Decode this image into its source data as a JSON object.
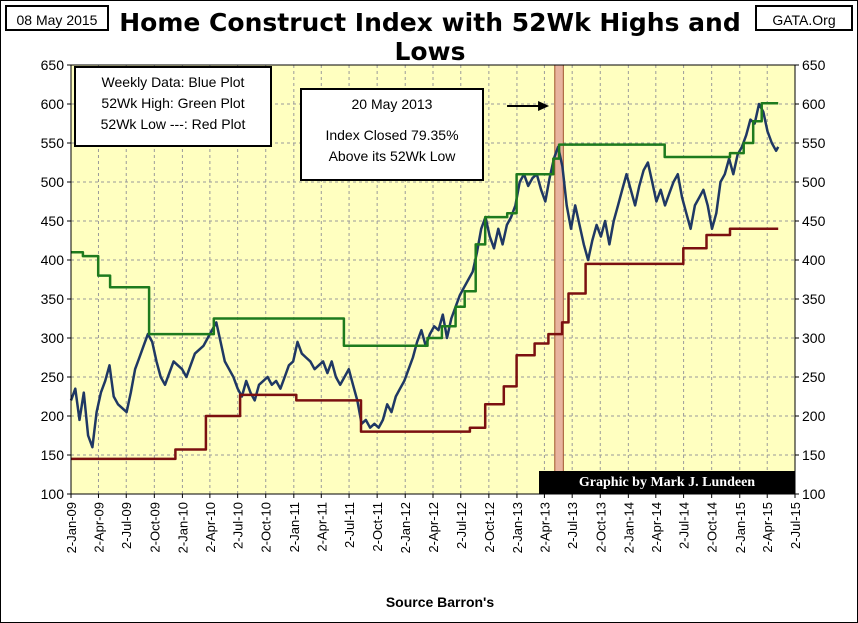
{
  "date_label": "08 May 2015",
  "site_label": "GATA.Org",
  "source_label": "Source Barron's",
  "credit_label": "Graphic by Mark J. Lundeen",
  "legend": {
    "line1": "Weekly Data: Blue Plot",
    "line2": "52Wk High: Green Plot",
    "line3": "52Wk Low ---: Red Plot"
  },
  "note": {
    "line1": "20 May 2013",
    "line2": "Index Closed  79.35%",
    "line3": "Above its 52Wk Low"
  },
  "colors": {
    "plot_bg": "#ffffc0",
    "weekly": "#1f3864",
    "high": "#1e7b1e",
    "low": "#7b1010",
    "highlight": "#e8b4a0"
  },
  "chart_data": {
    "type": "line",
    "title": "Home Construct Index with 52Wk Highs and Lows",
    "xlabel": "Source Barron's",
    "ylim": [
      100,
      650
    ],
    "yticks": [
      100,
      150,
      200,
      250,
      300,
      350,
      400,
      450,
      500,
      550,
      600,
      650
    ],
    "x_range": [
      "2009-01-02",
      "2015-07-02"
    ],
    "x_tick_labels": [
      "2-Jan-09",
      "2-Apr-09",
      "2-Jul-09",
      "2-Oct-09",
      "2-Jan-10",
      "2-Apr-10",
      "2-Jul-10",
      "2-Oct-10",
      "2-Jan-11",
      "2-Apr-11",
      "2-Jul-11",
      "2-Oct-11",
      "2-Jan-12",
      "2-Apr-12",
      "2-Jul-12",
      "2-Oct-12",
      "2-Jan-13",
      "2-Apr-13",
      "2-Jul-13",
      "2-Oct-13",
      "2-Jan-14",
      "2-Apr-14",
      "2-Jul-14",
      "2-Oct-14",
      "2-Jan-15",
      "2-Apr-15",
      "2-Jul-15"
    ],
    "x_tick_dates": [
      "2009-01-02",
      "2009-04-02",
      "2009-07-02",
      "2009-10-02",
      "2010-01-02",
      "2010-04-02",
      "2010-07-02",
      "2010-10-02",
      "2011-01-02",
      "2011-04-02",
      "2011-07-02",
      "2011-10-02",
      "2012-01-02",
      "2012-04-02",
      "2012-07-02",
      "2012-10-02",
      "2013-01-02",
      "2013-04-02",
      "2013-07-02",
      "2013-10-02",
      "2014-01-02",
      "2014-04-02",
      "2014-07-02",
      "2014-10-02",
      "2015-01-02",
      "2015-04-02",
      "2015-07-02"
    ],
    "highlight_range": [
      "2013-05-06",
      "2013-06-03"
    ],
    "annotation_date": "2013-05-20",
    "grid": true,
    "legend_placement": "top-left",
    "series": [
      {
        "key": "weekly",
        "points": [
          [
            "2009-01-02",
            220
          ],
          [
            "2009-01-16",
            235
          ],
          [
            "2009-01-30",
            195
          ],
          [
            "2009-02-13",
            230
          ],
          [
            "2009-02-27",
            175
          ],
          [
            "2009-03-13",
            160
          ],
          [
            "2009-03-27",
            205
          ],
          [
            "2009-04-10",
            230
          ],
          [
            "2009-04-24",
            245
          ],
          [
            "2009-05-08",
            265
          ],
          [
            "2009-05-22",
            225
          ],
          [
            "2009-06-05",
            215
          ],
          [
            "2009-06-19",
            210
          ],
          [
            "2009-07-03",
            205
          ],
          [
            "2009-07-17",
            230
          ],
          [
            "2009-07-31",
            260
          ],
          [
            "2009-08-14",
            275
          ],
          [
            "2009-08-28",
            290
          ],
          [
            "2009-09-11",
            305
          ],
          [
            "2009-09-25",
            295
          ],
          [
            "2009-10-09",
            270
          ],
          [
            "2009-10-23",
            250
          ],
          [
            "2009-11-06",
            240
          ],
          [
            "2009-11-20",
            255
          ],
          [
            "2009-12-04",
            270
          ],
          [
            "2009-12-18",
            265
          ],
          [
            "2010-01-01",
            260
          ],
          [
            "2010-01-15",
            250
          ],
          [
            "2010-01-29",
            265
          ],
          [
            "2010-02-12",
            280
          ],
          [
            "2010-02-26",
            285
          ],
          [
            "2010-03-12",
            290
          ],
          [
            "2010-03-26",
            300
          ],
          [
            "2010-04-09",
            310
          ],
          [
            "2010-04-23",
            320
          ],
          [
            "2010-05-07",
            295
          ],
          [
            "2010-05-21",
            270
          ],
          [
            "2010-06-04",
            260
          ],
          [
            "2010-06-18",
            250
          ],
          [
            "2010-07-02",
            235
          ],
          [
            "2010-07-16",
            225
          ],
          [
            "2010-07-30",
            245
          ],
          [
            "2010-08-13",
            230
          ],
          [
            "2010-08-27",
            220
          ],
          [
            "2010-09-10",
            240
          ],
          [
            "2010-09-24",
            245
          ],
          [
            "2010-10-08",
            250
          ],
          [
            "2010-10-22",
            240
          ],
          [
            "2010-11-05",
            245
          ],
          [
            "2010-11-19",
            235
          ],
          [
            "2010-12-03",
            250
          ],
          [
            "2010-12-17",
            265
          ],
          [
            "2010-12-31",
            270
          ],
          [
            "2011-01-14",
            295
          ],
          [
            "2011-01-28",
            280
          ],
          [
            "2011-02-11",
            275
          ],
          [
            "2011-02-25",
            270
          ],
          [
            "2011-03-11",
            260
          ],
          [
            "2011-03-25",
            265
          ],
          [
            "2011-04-08",
            270
          ],
          [
            "2011-04-22",
            255
          ],
          [
            "2011-05-06",
            270
          ],
          [
            "2011-05-20",
            250
          ],
          [
            "2011-06-03",
            240
          ],
          [
            "2011-06-17",
            250
          ],
          [
            "2011-07-01",
            260
          ],
          [
            "2011-07-15",
            240
          ],
          [
            "2011-07-29",
            220
          ],
          [
            "2011-08-12",
            190
          ],
          [
            "2011-08-26",
            195
          ],
          [
            "2011-09-09",
            185
          ],
          [
            "2011-09-23",
            190
          ],
          [
            "2011-10-07",
            185
          ],
          [
            "2011-10-21",
            195
          ],
          [
            "2011-11-04",
            215
          ],
          [
            "2011-11-18",
            205
          ],
          [
            "2011-12-02",
            225
          ],
          [
            "2011-12-16",
            235
          ],
          [
            "2011-12-30",
            245
          ],
          [
            "2012-01-13",
            260
          ],
          [
            "2012-01-27",
            275
          ],
          [
            "2012-02-10",
            295
          ],
          [
            "2012-02-24",
            310
          ],
          [
            "2012-03-09",
            290
          ],
          [
            "2012-03-23",
            305
          ],
          [
            "2012-04-06",
            315
          ],
          [
            "2012-04-20",
            310
          ],
          [
            "2012-05-04",
            330
          ],
          [
            "2012-05-18",
            300
          ],
          [
            "2012-06-01",
            325
          ],
          [
            "2012-06-15",
            340
          ],
          [
            "2012-06-29",
            355
          ],
          [
            "2012-07-13",
            365
          ],
          [
            "2012-07-27",
            375
          ],
          [
            "2012-08-10",
            385
          ],
          [
            "2012-08-24",
            410
          ],
          [
            "2012-09-07",
            440
          ],
          [
            "2012-09-21",
            455
          ],
          [
            "2012-10-05",
            430
          ],
          [
            "2012-10-19",
            415
          ],
          [
            "2012-11-02",
            440
          ],
          [
            "2012-11-16",
            420
          ],
          [
            "2012-11-30",
            445
          ],
          [
            "2012-12-14",
            455
          ],
          [
            "2012-12-28",
            470
          ],
          [
            "2013-01-11",
            500
          ],
          [
            "2013-01-25",
            510
          ],
          [
            "2013-02-08",
            495
          ],
          [
            "2013-02-22",
            505
          ],
          [
            "2013-03-08",
            510
          ],
          [
            "2013-03-22",
            490
          ],
          [
            "2013-04-05",
            475
          ],
          [
            "2013-04-19",
            505
          ],
          [
            "2013-05-03",
            530
          ],
          [
            "2013-05-17",
            545
          ],
          [
            "2013-05-31",
            520
          ],
          [
            "2013-06-14",
            470
          ],
          [
            "2013-06-28",
            440
          ],
          [
            "2013-07-12",
            470
          ],
          [
            "2013-07-26",
            445
          ],
          [
            "2013-08-09",
            420
          ],
          [
            "2013-08-23",
            400
          ],
          [
            "2013-09-06",
            425
          ],
          [
            "2013-09-20",
            445
          ],
          [
            "2013-10-04",
            430
          ],
          [
            "2013-10-18",
            450
          ],
          [
            "2013-11-01",
            420
          ],
          [
            "2013-11-15",
            450
          ],
          [
            "2013-11-29",
            470
          ],
          [
            "2013-12-13",
            490
          ],
          [
            "2013-12-27",
            510
          ],
          [
            "2014-01-10",
            490
          ],
          [
            "2014-01-24",
            470
          ],
          [
            "2014-02-07",
            495
          ],
          [
            "2014-02-21",
            515
          ],
          [
            "2014-03-07",
            525
          ],
          [
            "2014-03-21",
            500
          ],
          [
            "2014-04-04",
            475
          ],
          [
            "2014-04-18",
            490
          ],
          [
            "2014-05-02",
            470
          ],
          [
            "2014-05-16",
            485
          ],
          [
            "2014-05-30",
            500
          ],
          [
            "2014-06-13",
            510
          ],
          [
            "2014-06-27",
            480
          ],
          [
            "2014-07-11",
            460
          ],
          [
            "2014-07-25",
            440
          ],
          [
            "2014-08-08",
            470
          ],
          [
            "2014-08-22",
            480
          ],
          [
            "2014-09-05",
            490
          ],
          [
            "2014-09-19",
            470
          ],
          [
            "2014-10-03",
            440
          ],
          [
            "2014-10-17",
            460
          ],
          [
            "2014-10-31",
            500
          ],
          [
            "2014-11-14",
            510
          ],
          [
            "2014-11-28",
            530
          ],
          [
            "2014-12-12",
            510
          ],
          [
            "2014-12-26",
            535
          ],
          [
            "2015-01-09",
            545
          ],
          [
            "2015-01-23",
            560
          ],
          [
            "2015-02-06",
            580
          ],
          [
            "2015-02-20",
            575
          ],
          [
            "2015-03-06",
            600
          ],
          [
            "2015-03-20",
            590
          ],
          [
            "2015-04-03",
            565
          ],
          [
            "2015-04-17",
            550
          ],
          [
            "2015-05-01",
            540
          ],
          [
            "2015-05-08",
            545
          ]
        ]
      },
      {
        "key": "high",
        "points": [
          [
            "2009-01-02",
            410
          ],
          [
            "2009-02-10",
            410
          ],
          [
            "2009-02-10",
            405
          ],
          [
            "2009-04-01",
            405
          ],
          [
            "2009-04-01",
            380
          ],
          [
            "2009-05-10",
            380
          ],
          [
            "2009-05-10",
            365
          ],
          [
            "2009-09-15",
            365
          ],
          [
            "2009-09-15",
            305
          ],
          [
            "2010-04-15",
            305
          ],
          [
            "2010-04-15",
            325
          ],
          [
            "2011-06-15",
            325
          ],
          [
            "2011-06-15",
            290
          ],
          [
            "2012-03-15",
            290
          ],
          [
            "2012-03-15",
            300
          ],
          [
            "2012-05-01",
            300
          ],
          [
            "2012-05-01",
            315
          ],
          [
            "2012-06-15",
            315
          ],
          [
            "2012-06-15",
            340
          ],
          [
            "2012-07-15",
            340
          ],
          [
            "2012-07-15",
            360
          ],
          [
            "2012-08-20",
            360
          ],
          [
            "2012-08-20",
            420
          ],
          [
            "2012-09-20",
            420
          ],
          [
            "2012-09-20",
            455
          ],
          [
            "2012-12-01",
            455
          ],
          [
            "2012-12-01",
            460
          ],
          [
            "2013-01-01",
            460
          ],
          [
            "2013-01-01",
            510
          ],
          [
            "2013-05-01",
            510
          ],
          [
            "2013-05-01",
            530
          ],
          [
            "2013-05-20",
            530
          ],
          [
            "2013-05-20",
            548
          ],
          [
            "2014-05-01",
            548
          ],
          [
            "2014-05-01",
            532
          ],
          [
            "2014-12-01",
            532
          ],
          [
            "2014-12-01",
            537
          ],
          [
            "2015-01-15",
            537
          ],
          [
            "2015-01-15",
            550
          ],
          [
            "2015-02-15",
            550
          ],
          [
            "2015-02-15",
            578
          ],
          [
            "2015-03-15",
            578
          ],
          [
            "2015-03-15",
            601
          ],
          [
            "2015-05-08",
            601
          ]
        ]
      },
      {
        "key": "low",
        "points": [
          [
            "2009-01-02",
            145
          ],
          [
            "2009-12-10",
            145
          ],
          [
            "2009-12-10",
            157
          ],
          [
            "2010-03-20",
            157
          ],
          [
            "2010-03-20",
            200
          ],
          [
            "2010-07-10",
            200
          ],
          [
            "2010-07-10",
            227
          ],
          [
            "2011-01-10",
            227
          ],
          [
            "2011-01-10",
            220
          ],
          [
            "2011-08-10",
            220
          ],
          [
            "2011-08-10",
            180
          ],
          [
            "2012-08-01",
            180
          ],
          [
            "2012-08-01",
            185
          ],
          [
            "2012-09-20",
            185
          ],
          [
            "2012-09-20",
            215
          ],
          [
            "2012-11-20",
            215
          ],
          [
            "2012-11-20",
            238
          ],
          [
            "2013-01-01",
            238
          ],
          [
            "2013-01-01",
            278
          ],
          [
            "2013-03-01",
            278
          ],
          [
            "2013-03-01",
            293
          ],
          [
            "2013-04-15",
            293
          ],
          [
            "2013-04-15",
            305
          ],
          [
            "2013-05-30",
            305
          ],
          [
            "2013-05-30",
            320
          ],
          [
            "2013-06-20",
            320
          ],
          [
            "2013-06-20",
            357
          ],
          [
            "2013-08-15",
            357
          ],
          [
            "2013-08-15",
            395
          ],
          [
            "2014-07-01",
            395
          ],
          [
            "2014-07-01",
            415
          ],
          [
            "2014-09-15",
            415
          ],
          [
            "2014-09-15",
            432
          ],
          [
            "2014-12-01",
            432
          ],
          [
            "2014-12-01",
            440
          ],
          [
            "2015-05-08",
            440
          ]
        ]
      }
    ]
  }
}
